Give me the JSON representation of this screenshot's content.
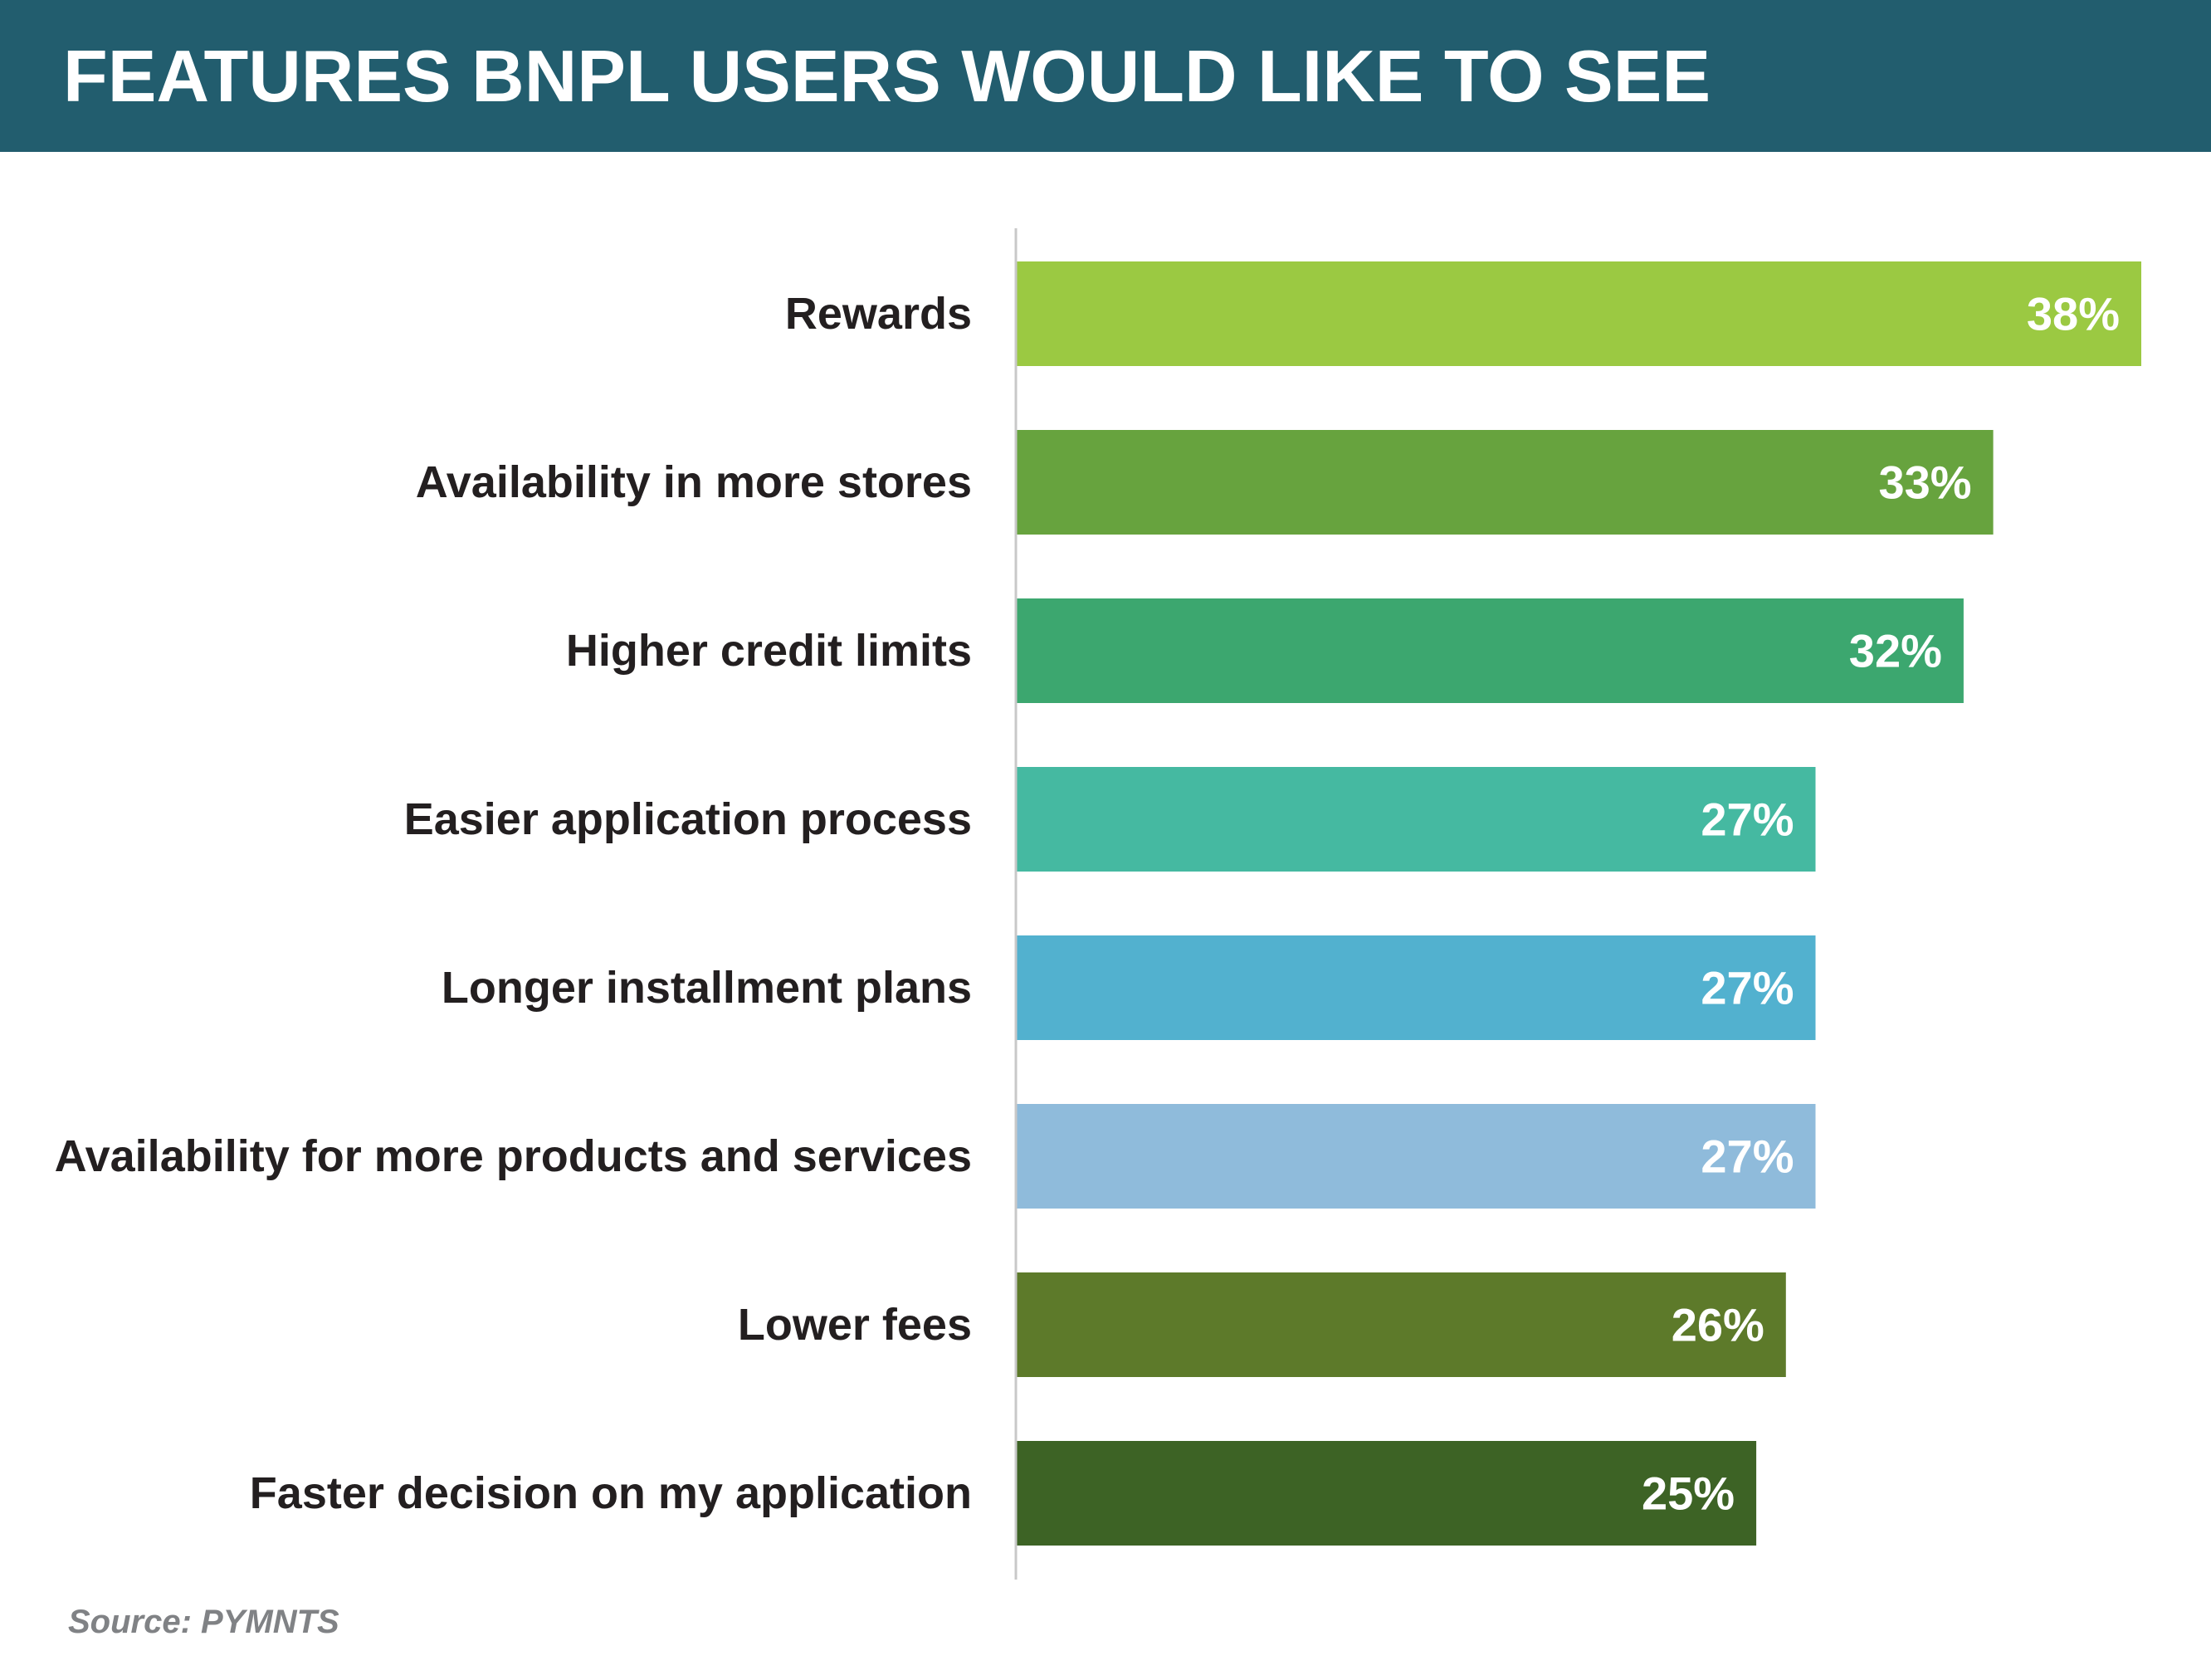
{
  "header": {
    "title": "FEATURES BNPL USERS WOULD LIKE TO SEE"
  },
  "source": {
    "text": "Source: PYMNTS"
  },
  "colors": {
    "header_bg": "#225d6e",
    "axis_line": "#c8c8c8",
    "category_text": "#231f20",
    "value_text": "#ffffff",
    "source_text": "#808285"
  },
  "chart_data": {
    "type": "bar",
    "orientation": "horizontal",
    "title": "FEATURES BNPL USERS WOULD LIKE TO SEE",
    "xlabel": "",
    "ylabel": "",
    "grid": false,
    "legend": "none",
    "xlim": [
      0,
      38
    ],
    "categories": [
      "Rewards",
      "Availability in more stores",
      "Higher credit limits",
      "Easier application process",
      "Longer installment plans",
      "Availability for more products and services",
      "Lower fees",
      "Faster decision on my application"
    ],
    "values": [
      38,
      33,
      32,
      27,
      27,
      27,
      26,
      25
    ],
    "value_labels": [
      "38%",
      "33%",
      "32%",
      "27%",
      "27%",
      "27%",
      "26%",
      "25%"
    ],
    "bar_colors": [
      "#9bc942",
      "#67a33e",
      "#3ca76f",
      "#45b9a1",
      "#52b1cf",
      "#8fbbdb",
      "#5d7a2a",
      "#3d6325"
    ]
  }
}
